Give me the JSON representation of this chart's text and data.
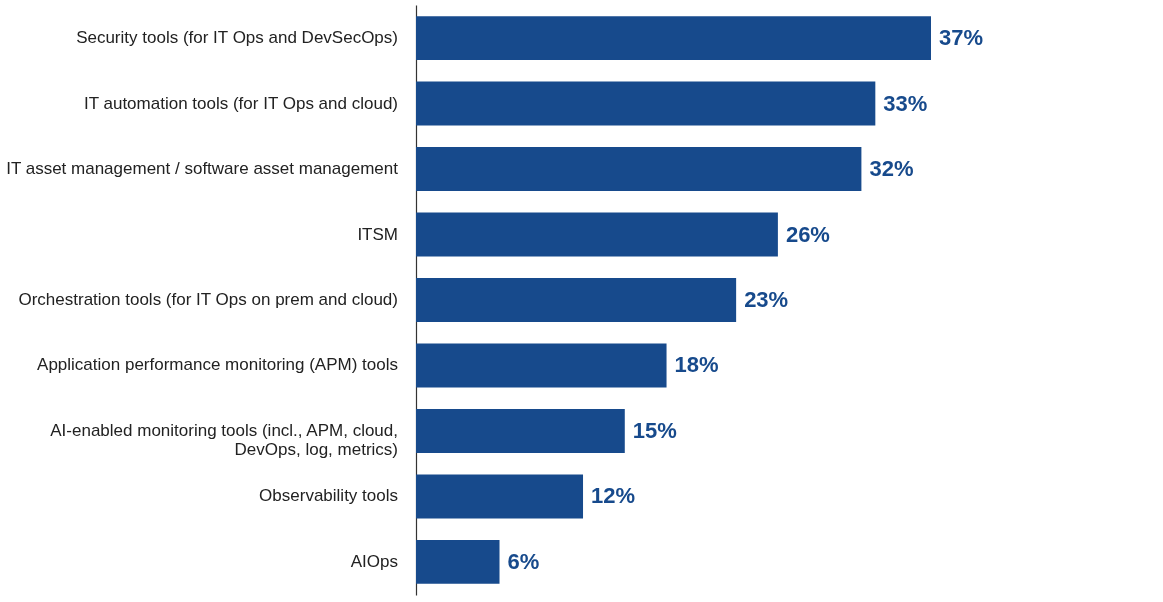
{
  "chart_data": {
    "type": "bar",
    "orientation": "horizontal",
    "categories": [
      "Security tools (for IT Ops and DevSecOps)",
      "IT automation tools (for IT Ops and cloud)",
      "IT asset management / software asset management",
      "ITSM",
      "Orchestration tools (for IT Ops on prem and cloud)",
      "Application performance monitoring (APM) tools",
      "AI-enabled monitoring tools (incl., APM, cloud, DevOps, log, metrics)",
      "Observability tools",
      "AIOps"
    ],
    "values": [
      37,
      33,
      32,
      26,
      23,
      18,
      15,
      12,
      6
    ],
    "color": "#174a8c",
    "value_labels": [
      "37%",
      "33%",
      "32%",
      "26%",
      "23%",
      "18%",
      "15%",
      "12%",
      "6%"
    ]
  }
}
